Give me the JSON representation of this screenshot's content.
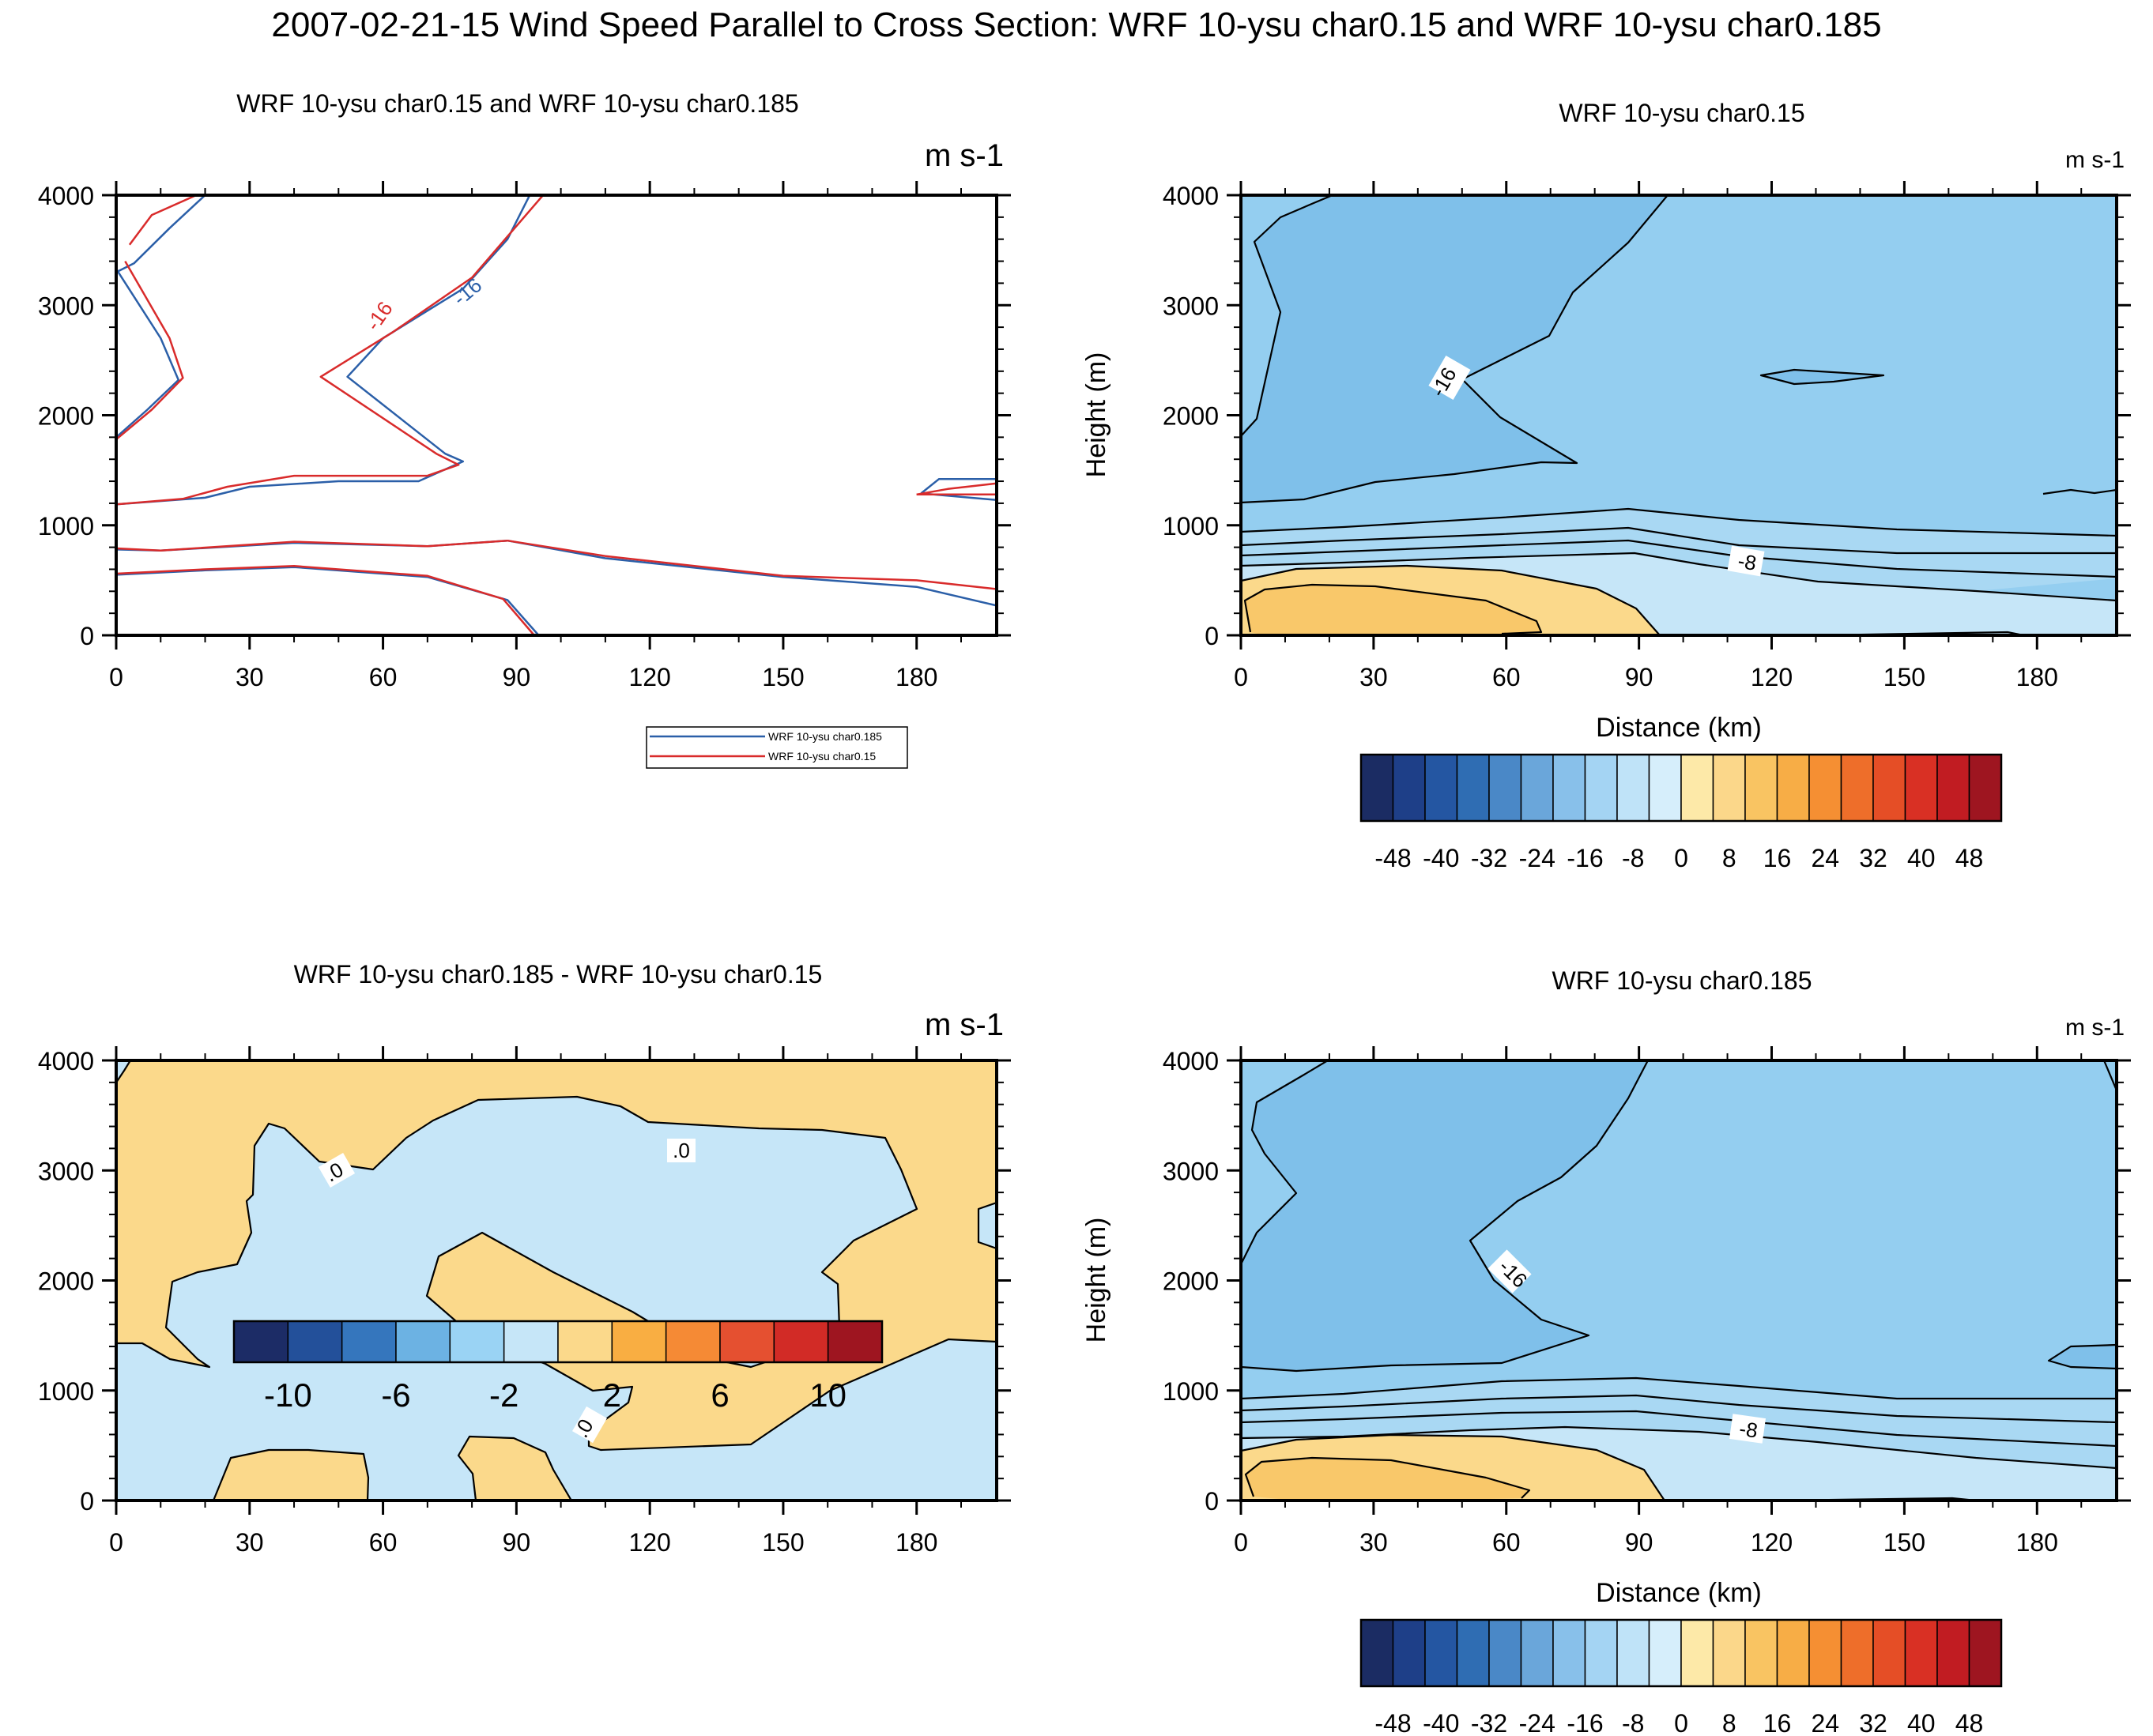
{
  "figure": {
    "title": "2007-02-21-15 Wind Speed Parallel to Cross Section: WRF 10-ysu char0.15 and WRF 10-ysu char0.185"
  },
  "colors": {
    "fill_neg_4_to_0": "#c6e6f8",
    "fill_neg_8_to_neg_4": "#a9d8f3",
    "fill_neg_12_to_neg_8": "#94cef0",
    "fill_neg_16_to_neg_12": "#7fc0ea",
    "fill_0_to_4": "#fbd98b",
    "fill_4_to_8": "#f9c86a",
    "series_char0185": "#2b5fa8",
    "series_char015": "#d92b2b"
  },
  "chart_data": [
    {
      "id": "overlay",
      "type": "contour",
      "title": "WRF 10-ysu char0.15 and WRF 10-ysu char0.185",
      "units": "m s-1",
      "xlabel": "",
      "ylabel": "",
      "xlim": [
        0,
        198
      ],
      "ylim": [
        0,
        4000
      ],
      "x_ticks": [
        0,
        30,
        60,
        90,
        120,
        150,
        180
      ],
      "y_ticks": [
        0,
        1000,
        2000,
        3000,
        4000
      ],
      "legend": {
        "placement": "bottom-center",
        "entries": [
          "WRF 10-ysu char0.185",
          "WRF 10-ysu char0.15"
        ]
      },
      "contour_labels": [
        "-16",
        "-16"
      ],
      "series": [
        {
          "name": "WRF 10-ysu char0.185",
          "color": "#2b5fa8",
          "lines": [
            [
              [
                0,
                3300
              ],
              [
                4,
                3380
              ],
              [
                12,
                3700
              ],
              [
                20,
                4000
              ]
            ],
            [
              [
                0,
                3330
              ],
              [
                10,
                2700
              ],
              [
                14,
                2320
              ],
              [
                7,
                2050
              ],
              [
                0,
                1800
              ]
            ],
            [
              [
                0,
                1190
              ],
              [
                20,
                1250
              ],
              [
                30,
                1350
              ],
              [
                50,
                1400
              ],
              [
                68,
                1400
              ],
              [
                78,
                1580
              ],
              [
                74,
                1650
              ],
              [
                52,
                2350
              ],
              [
                60,
                2700
              ],
              [
                78,
                3150
              ],
              [
                88,
                3600
              ],
              [
                93,
                4000
              ]
            ],
            [
              [
                0,
                780
              ],
              [
                10,
                770
              ],
              [
                40,
                840
              ],
              [
                70,
                810
              ],
              [
                88,
                860
              ],
              [
                110,
                700
              ],
              [
                150,
                530
              ],
              [
                180,
                440
              ],
              [
                198,
                270
              ]
            ],
            [
              [
                0,
                550
              ],
              [
                20,
                590
              ],
              [
                40,
                620
              ],
              [
                70,
                530
              ],
              [
                88,
                320
              ],
              [
                95,
                0
              ]
            ],
            [
              [
                181,
                1290
              ],
              [
                185,
                1420
              ],
              [
                198,
                1420
              ]
            ],
            [
              [
                181,
                1290
              ],
              [
                198,
                1230
              ]
            ]
          ]
        },
        {
          "name": "WRF 10-ysu char0.15",
          "color": "#d92b2b",
          "lines": [
            [
              [
                3,
                3550
              ],
              [
                8,
                3820
              ],
              [
                18,
                4000
              ]
            ],
            [
              [
                2,
                3400
              ],
              [
                12,
                2700
              ],
              [
                15,
                2340
              ],
              [
                8,
                2050
              ],
              [
                0,
                1780
              ]
            ],
            [
              [
                0,
                1190
              ],
              [
                15,
                1240
              ],
              [
                25,
                1350
              ],
              [
                40,
                1450
              ],
              [
                70,
                1450
              ],
              [
                77,
                1550
              ],
              [
                72,
                1650
              ],
              [
                46,
                2350
              ],
              [
                62,
                2750
              ],
              [
                80,
                3250
              ],
              [
                96,
                4000
              ]
            ],
            [
              [
                0,
                790
              ],
              [
                10,
                770
              ],
              [
                40,
                850
              ],
              [
                70,
                810
              ],
              [
                88,
                860
              ],
              [
                110,
                720
              ],
              [
                150,
                540
              ],
              [
                180,
                500
              ],
              [
                198,
                420
              ]
            ],
            [
              [
                0,
                560
              ],
              [
                20,
                600
              ],
              [
                40,
                630
              ],
              [
                70,
                540
              ],
              [
                87,
                330
              ],
              [
                94,
                0
              ]
            ],
            [
              [
                180,
                1280
              ],
              [
                187,
                1330
              ],
              [
                198,
                1380
              ]
            ],
            [
              [
                180,
                1280
              ],
              [
                198,
                1280
              ]
            ]
          ]
        }
      ]
    },
    {
      "id": "char015",
      "type": "contour",
      "title": "WRF 10-ysu char0.15",
      "units": "m s-1",
      "xlabel": "Distance (km)",
      "ylabel": "Height (m)",
      "xlim": [
        0,
        198
      ],
      "ylim": [
        0,
        4000
      ],
      "x_ticks": [
        0,
        30,
        60,
        90,
        120,
        150,
        180
      ],
      "y_ticks": [
        0,
        1000,
        2000,
        3000,
        4000
      ],
      "contour_interval": 4,
      "contour_labels": [
        "-16",
        "-8"
      ],
      "colorbar_labels": [
        "-48",
        "-40",
        "-32",
        "-24",
        "-16",
        "-8",
        "0",
        "8",
        "16",
        "24",
        "32",
        "40",
        "48"
      ]
    },
    {
      "id": "difference",
      "type": "contour",
      "title": "WRF 10-ysu char0.185 - WRF 10-ysu char0.15",
      "units": "m s-1",
      "xlabel": "",
      "ylabel": "",
      "xlim": [
        0,
        198
      ],
      "ylim": [
        0,
        4000
      ],
      "x_ticks": [
        0,
        30,
        60,
        90,
        120,
        150,
        180
      ],
      "y_ticks": [
        0,
        1000,
        2000,
        3000,
        4000
      ],
      "contour_labels": [
        ".0",
        ".0",
        ".0"
      ],
      "colorbar_labels": [
        "-10",
        "-6",
        "-2",
        "2",
        "6",
        "10"
      ]
    },
    {
      "id": "char0185",
      "type": "contour",
      "title": "WRF 10-ysu char0.185",
      "units": "m s-1",
      "xlabel": "Distance (km)",
      "ylabel": "Height (m)",
      "xlim": [
        0,
        198
      ],
      "ylim": [
        0,
        4000
      ],
      "x_ticks": [
        0,
        30,
        60,
        90,
        120,
        150,
        180
      ],
      "y_ticks": [
        0,
        1000,
        2000,
        3000,
        4000
      ],
      "contour_interval": 4,
      "contour_labels": [
        "-16",
        "-8"
      ],
      "colorbar_labels": [
        "-48",
        "-40",
        "-32",
        "-24",
        "-16",
        "-8",
        "0",
        "8",
        "16",
        "24",
        "32",
        "40",
        "48"
      ]
    }
  ]
}
